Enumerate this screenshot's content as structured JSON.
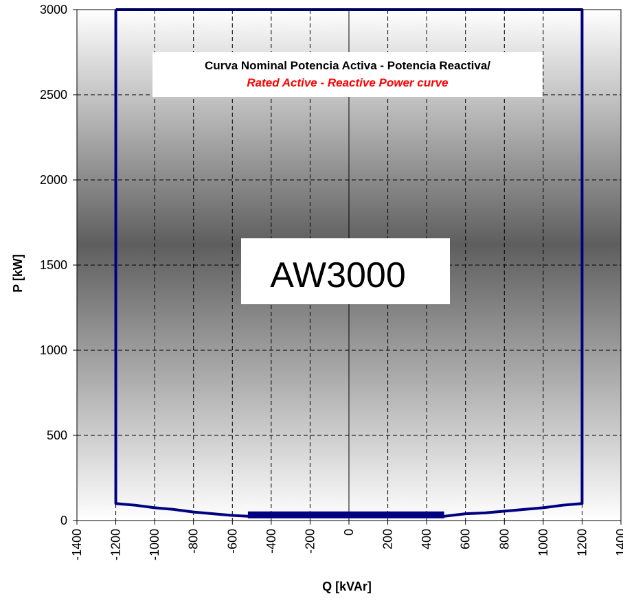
{
  "chart_data": {
    "type": "line",
    "title": "Curva Nominal Potencia Activa - Potencia Reactiva/",
    "subtitle": "Rated Active - Reactive Power curve",
    "annotation": "AW3000",
    "xlabel": "Q [kVAr]",
    "ylabel": "P [kW]",
    "xlim": [
      -1400,
      1400
    ],
    "ylim": [
      0,
      3000
    ],
    "x_ticks": [
      -1400,
      -1200,
      -1000,
      -800,
      -600,
      -400,
      -200,
      0,
      200,
      400,
      600,
      800,
      1000,
      1200,
      1400
    ],
    "y_ticks": [
      0,
      500,
      1000,
      1500,
      2000,
      2500,
      3000
    ],
    "grid": true,
    "colors": {
      "curve": "#000080",
      "subtitle": "#ff0000"
    },
    "series": [
      {
        "x": [
          -1200,
          -1200,
          -1100,
          -1000,
          -900,
          -800,
          -700,
          -600,
          -520,
          490,
          600,
          700,
          800,
          900,
          1000,
          1100,
          1200,
          1200,
          -1200
        ],
        "y": [
          3000,
          100,
          90,
          75,
          65,
          50,
          40,
          30,
          25,
          25,
          40,
          45,
          55,
          65,
          75,
          90,
          100,
          3000,
          3000
        ]
      }
    ]
  }
}
